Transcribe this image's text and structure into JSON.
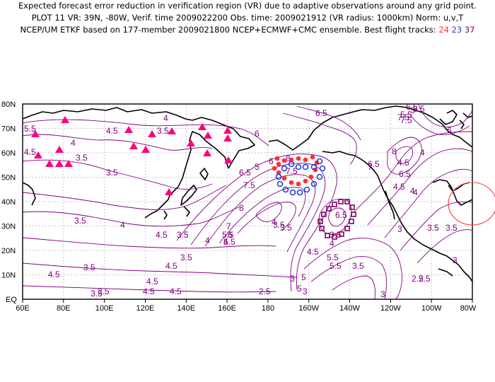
{
  "title": {
    "line1": "Expected forecast error reduction in verification region (VR) due to adaptive observations around any grid point.",
    "line2": "PLOT 11 VR: 39N, -80W, Verif. time 2009022200 Obs. time: 2009021912 (VR radius: 1000km) Norm: u,v,T",
    "line3_prefix": "NCEP/UM ETKF based on 177-member 2009021800 NCEP+ECMWF+CMC ensemble. Best flight tracks:",
    "tracks": [
      {
        "label": "24",
        "color": "#ff3030"
      },
      {
        "label": "23",
        "color": "#2040e0"
      },
      {
        "label": "37",
        "color": "#800060"
      }
    ]
  },
  "map": {
    "lat_labels": [
      "80N",
      "70N",
      "60N",
      "50N",
      "40N",
      "30N",
      "20N",
      "10N",
      "EQ"
    ],
    "lon_labels": [
      "60E",
      "80E",
      "100E",
      "120E",
      "140E",
      "160E",
      "180",
      "160W",
      "140W",
      "120W",
      "100W",
      "80W"
    ],
    "contour_color": "#800080",
    "contour_labels": [
      "5.5",
      "4.5",
      "4",
      "3.5",
      "3.5",
      "4",
      "3.5",
      "4.5",
      "3.5",
      "4",
      "6",
      "5",
      "6.5",
      "7.5",
      "6.5",
      "6",
      "7.5",
      "8",
      "8",
      "6.5",
      "7",
      "6",
      "5.5",
      "5",
      "4.5",
      "3.5",
      "3.5",
      "4.5",
      "3",
      "3.5",
      "4",
      "3.5",
      "3.5",
      "3.5",
      "4.5",
      "3.5",
      "4.5",
      "4.5",
      "4.5",
      "4",
      "3.5",
      "2.5",
      "3",
      "5",
      "4.5",
      "3.5",
      "3",
      "3.5",
      "2.5",
      "4",
      "3",
      "6.5",
      "6.5",
      "7",
      "7.5",
      "8",
      "6",
      "6.5",
      "4.5",
      "4",
      "3",
      "3.5",
      "4",
      "2.5",
      "5",
      "5.5",
      "5.5",
      "4.5",
      "4.5",
      "4",
      "6.5",
      "7.5",
      "5.5",
      "3"
    ],
    "triangle_color": "#ff007f",
    "verification_circle_color": "#ff4040"
  }
}
